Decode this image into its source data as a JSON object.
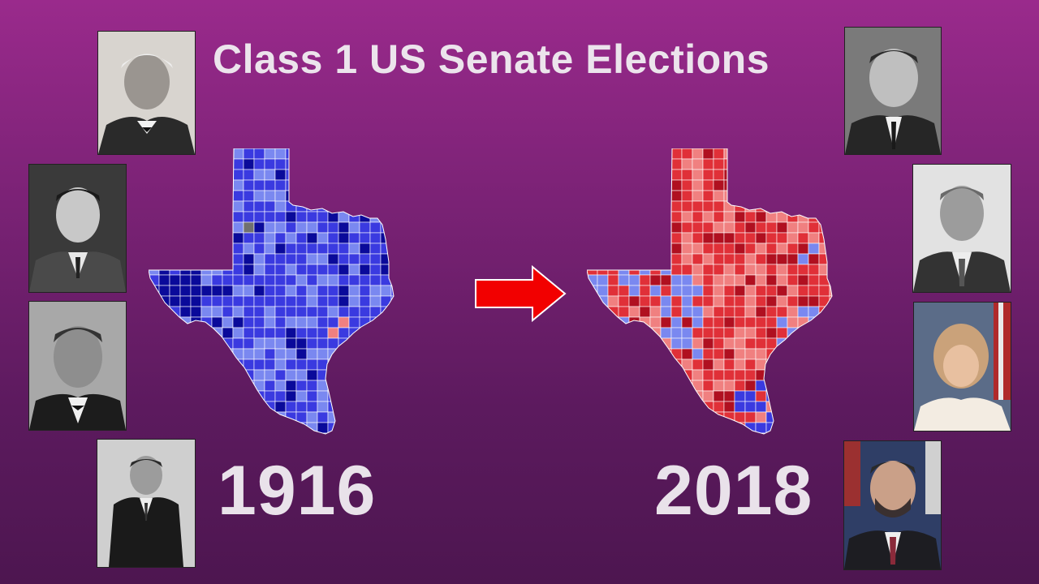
{
  "title": "Class 1 US Senate Elections",
  "left_year": "1916",
  "right_year": "2018",
  "colors": {
    "background_top": "#9a2a8c",
    "background_bottom": "#4d1650",
    "democrat_dark": "#0a0a9a",
    "democrat_mid": "#3a3ae0",
    "democrat_light": "#7a88f0",
    "republican_dark": "#b01020",
    "republican_mid": "#e03038",
    "republican_light": "#f08080",
    "no_data": "#707070",
    "arrow": "#f00000"
  },
  "maps": [
    {
      "year": "1916",
      "dominant_party": "Democratic"
    },
    {
      "year": "2018",
      "dominant_party": "Republican"
    }
  ],
  "portraits_left": [
    {
      "style": "black-and-white"
    },
    {
      "style": "black-and-white"
    },
    {
      "style": "black-and-white"
    },
    {
      "style": "black-and-white"
    }
  ],
  "portraits_right": [
    {
      "style": "black-and-white"
    },
    {
      "style": "black-and-white"
    },
    {
      "style": "color"
    },
    {
      "style": "color"
    }
  ]
}
